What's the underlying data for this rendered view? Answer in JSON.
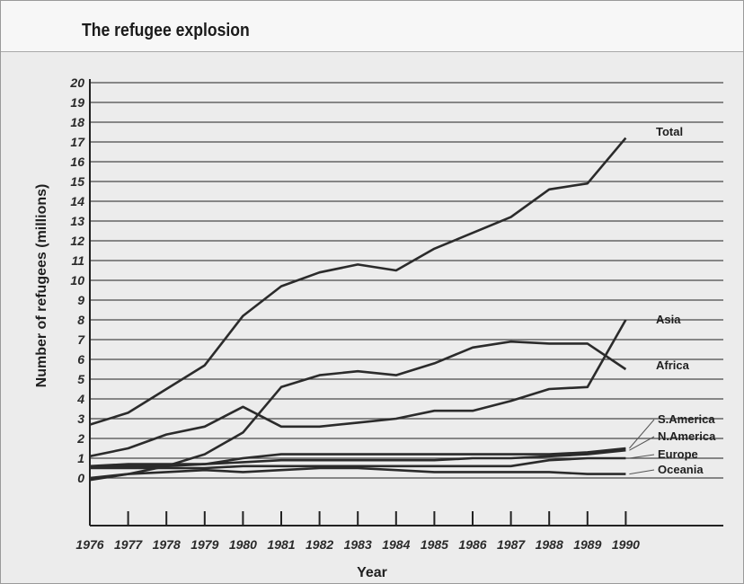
{
  "chart_data": {
    "type": "line",
    "title": "The refugee explosion",
    "xlabel": "Year",
    "ylabel": "Number of refugees (millions)",
    "x": [
      "1976",
      "1977",
      "1978",
      "1979",
      "1980",
      "1981",
      "1982",
      "1983",
      "1984",
      "1985",
      "1986",
      "1987",
      "1988",
      "1989",
      "1990"
    ],
    "ylim": [
      0,
      20
    ],
    "yticks": [
      "0",
      "1",
      "2",
      "3",
      "4",
      "5",
      "6",
      "7",
      "8",
      "9",
      "10",
      "11",
      "12",
      "13",
      "14",
      "15",
      "16",
      "17",
      "18",
      "19",
      "20"
    ],
    "grid": true,
    "series": [
      {
        "name": "Total",
        "values": [
          2.7,
          3.3,
          4.5,
          5.7,
          8.2,
          9.7,
          10.4,
          10.8,
          10.5,
          11.6,
          12.4,
          13.2,
          14.6,
          14.9,
          17.2
        ]
      },
      {
        "name": "Asia",
        "values": [
          1.1,
          1.5,
          2.2,
          2.6,
          3.6,
          2.6,
          2.6,
          2.8,
          3.0,
          3.4,
          3.4,
          3.9,
          4.5,
          4.6,
          8.0
        ]
      },
      {
        "name": "Africa",
        "values": [
          -0.1,
          0.2,
          0.6,
          1.2,
          2.3,
          4.6,
          5.2,
          5.4,
          5.2,
          5.8,
          6.6,
          6.9,
          6.8,
          6.8,
          5.5
        ]
      },
      {
        "name": "S.America",
        "values": [
          0.6,
          0.6,
          0.6,
          0.7,
          1.0,
          1.2,
          1.2,
          1.2,
          1.2,
          1.2,
          1.2,
          1.2,
          1.2,
          1.3,
          1.5
        ]
      },
      {
        "name": "N.America",
        "values": [
          0.6,
          0.7,
          0.7,
          0.7,
          0.8,
          0.9,
          0.9,
          0.9,
          0.9,
          0.9,
          1.0,
          1.0,
          1.1,
          1.2,
          1.4
        ]
      },
      {
        "name": "Europe",
        "values": [
          0.5,
          0.5,
          0.5,
          0.5,
          0.6,
          0.6,
          0.6,
          0.6,
          0.6,
          0.6,
          0.6,
          0.6,
          0.9,
          1.0,
          1.0
        ]
      },
      {
        "name": "Oceania",
        "values": [
          0.0,
          0.2,
          0.3,
          0.4,
          0.3,
          0.4,
          0.5,
          0.5,
          0.4,
          0.3,
          0.3,
          0.3,
          0.3,
          0.2,
          0.2
        ]
      }
    ],
    "label_colors": {
      "line": "#2b2b2b",
      "grid": "#4a4a4a",
      "background": "#ececec"
    }
  }
}
